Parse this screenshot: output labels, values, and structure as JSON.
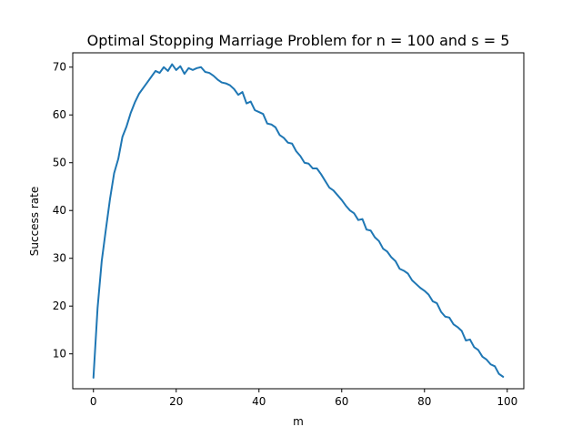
{
  "chart_data": {
    "type": "line",
    "title": "Optimal Stopping Marriage Problem for n = 100 and s = 5",
    "xlabel": "m",
    "ylabel": "Success rate",
    "xlim": [
      -5,
      104
    ],
    "ylim": [
      2.7,
      73
    ],
    "xticks": [
      0,
      20,
      40,
      60,
      80,
      100
    ],
    "yticks": [
      10,
      20,
      30,
      40,
      50,
      60,
      70
    ],
    "grid": false,
    "line_color": "#1f77b4",
    "series": [
      {
        "x": [
          0,
          1,
          2,
          3,
          4,
          5,
          6,
          7,
          8,
          9,
          10,
          11,
          12,
          13,
          14,
          15,
          16,
          17,
          18,
          19,
          20,
          21,
          22,
          23,
          24,
          25,
          26,
          27,
          28,
          29,
          30,
          31,
          32,
          33,
          34,
          35,
          36,
          37,
          38,
          39,
          40,
          41,
          42,
          43,
          44,
          45,
          46,
          47,
          48,
          49,
          50,
          51,
          52,
          53,
          54,
          55,
          56,
          57,
          58,
          59,
          60,
          61,
          62,
          63,
          64,
          65,
          66,
          67,
          68,
          69,
          70,
          71,
          72,
          73,
          74,
          75,
          76,
          77,
          78,
          79,
          80,
          81,
          82,
          83,
          84,
          85,
          86,
          87,
          88,
          89,
          90,
          91,
          92,
          93,
          94,
          95,
          96,
          97,
          98,
          99
        ],
        "values": [
          5.0,
          19.6,
          29.4,
          36.0,
          42.4,
          47.8,
          50.8,
          55.4,
          57.6,
          60.4,
          62.6,
          64.4,
          65.6,
          66.8,
          68.0,
          69.2,
          68.8,
          70.0,
          69.2,
          70.6,
          69.4,
          70.2,
          68.6,
          69.8,
          69.4,
          69.8,
          70.0,
          69.0,
          68.8,
          68.2,
          67.4,
          66.8,
          66.6,
          66.2,
          65.4,
          64.2,
          64.8,
          62.4,
          62.8,
          61.0,
          60.6,
          60.2,
          58.2,
          58.0,
          57.4,
          55.8,
          55.2,
          54.2,
          54.0,
          52.4,
          51.4,
          50.0,
          49.8,
          48.8,
          48.8,
          47.6,
          46.2,
          44.8,
          44.2,
          43.2,
          42.2,
          41.0,
          40.0,
          39.4,
          38.0,
          38.2,
          36.0,
          35.8,
          34.4,
          33.6,
          32.0,
          31.4,
          30.2,
          29.4,
          27.8,
          27.4,
          26.8,
          25.4,
          24.6,
          23.8,
          23.2,
          22.4,
          21.0,
          20.6,
          18.8,
          17.8,
          17.6,
          16.2,
          15.6,
          14.8,
          12.8,
          13.0,
          11.4,
          10.8,
          9.4,
          8.8,
          7.8,
          7.4,
          5.8,
          5.2
        ]
      }
    ]
  }
}
